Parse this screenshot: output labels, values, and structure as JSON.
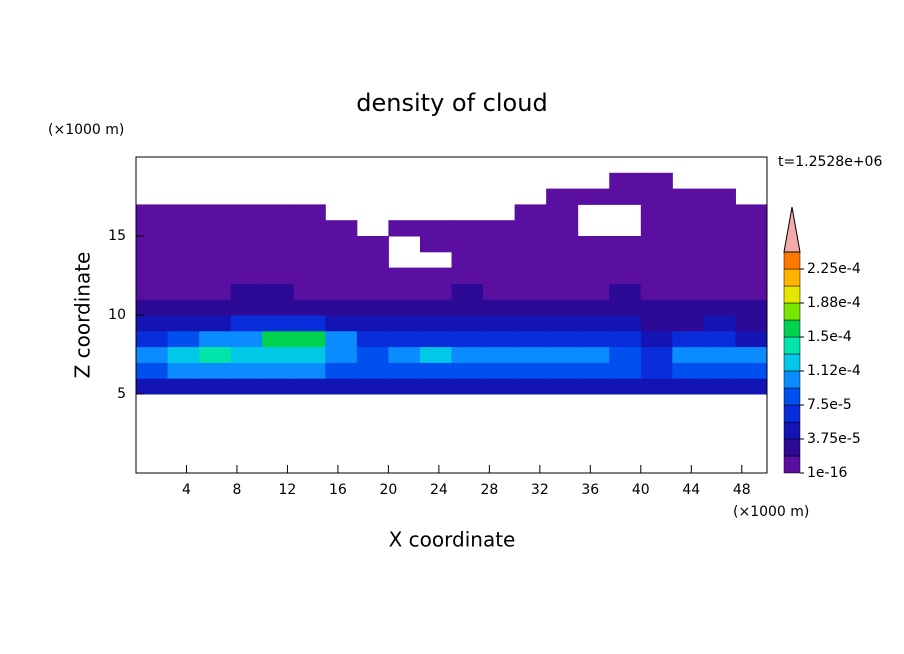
{
  "chart_data": {
    "type": "contour",
    "title": "density of cloud",
    "xlabel": "X coordinate",
    "ylabel": "Z coordinate",
    "x_unit_label": "(×1000 m)",
    "y_unit_label": "(×1000 m)",
    "annotation": "t=1.2528e+06",
    "xlim": [
      0,
      50
    ],
    "ylim": [
      0,
      20
    ],
    "xticks": [
      4,
      8,
      12,
      16,
      20,
      24,
      28,
      32,
      36,
      40,
      44,
      48
    ],
    "yticks": [
      5,
      10,
      15
    ],
    "x_edges": [
      0,
      2.5,
      5,
      7.5,
      10,
      12.5,
      15,
      17.5,
      20,
      22.5,
      25,
      27.5,
      30,
      32.5,
      35,
      37.5,
      40,
      42.5,
      45,
      47.5,
      50
    ],
    "y_edges": [
      5,
      6,
      7,
      8,
      9,
      10,
      11,
      12,
      13,
      14,
      15,
      16,
      17,
      18,
      19
    ],
    "z": [
      [
        4.5e-05,
        4.5e-05,
        4.5e-05,
        4.5e-05,
        4.5e-05,
        4.5e-05,
        4.5e-05,
        4.5e-05,
        4.5e-05,
        4.5e-05,
        4.5e-05,
        4.5e-05,
        4.5e-05,
        4.5e-05,
        4.5e-05,
        4.5e-05,
        4.5e-05,
        4.5e-05,
        4.5e-05,
        4.5e-05
      ],
      [
        8.5e-05,
        0.0001,
        0.0001,
        0.0001,
        0.0001,
        0.0001,
        8.5e-05,
        8.5e-05,
        8.5e-05,
        8.5e-05,
        8.5e-05,
        8.5e-05,
        8.5e-05,
        8.5e-05,
        8.5e-05,
        8.5e-05,
        6.5e-05,
        8.5e-05,
        8.5e-05,
        8.5e-05
      ],
      [
        0.0001,
        0.00012,
        0.00014,
        0.00012,
        0.00012,
        0.00012,
        0.0001,
        8.5e-05,
        0.0001,
        0.00012,
        0.0001,
        0.0001,
        0.0001,
        0.0001,
        0.0001,
        8.5e-05,
        6.5e-05,
        0.0001,
        0.0001,
        0.0001
      ],
      [
        6.5e-05,
        8.5e-05,
        0.0001,
        0.0001,
        0.00016,
        0.00016,
        0.0001,
        6.5e-05,
        6.5e-05,
        6.5e-05,
        6.5e-05,
        6.5e-05,
        6.5e-05,
        6.5e-05,
        6.5e-05,
        6.5e-05,
        4.5e-05,
        6.5e-05,
        6.5e-05,
        4.5e-05
      ],
      [
        4.5e-05,
        4.5e-05,
        4.5e-05,
        6.5e-05,
        6.5e-05,
        6.5e-05,
        4.5e-05,
        4.5e-05,
        4.5e-05,
        4.5e-05,
        4.5e-05,
        4.5e-05,
        4.5e-05,
        4.5e-05,
        4.5e-05,
        4.5e-05,
        2.5e-05,
        2.5e-05,
        4.5e-05,
        2.5e-05
      ],
      [
        2.5e-05,
        2.5e-05,
        2.5e-05,
        2.5e-05,
        2.5e-05,
        2.5e-05,
        2.5e-05,
        2.5e-05,
        2.5e-05,
        2.5e-05,
        2.5e-05,
        2.5e-05,
        2.5e-05,
        2.5e-05,
        2.5e-05,
        2.5e-05,
        2.5e-05,
        2.5e-05,
        2.5e-05,
        2.5e-05
      ],
      [
        5e-06,
        5e-06,
        5e-06,
        2.5e-05,
        2.5e-05,
        5e-06,
        5e-06,
        5e-06,
        5e-06,
        5e-06,
        2.5e-05,
        5e-06,
        5e-06,
        5e-06,
        5e-06,
        2.5e-05,
        5e-06,
        5e-06,
        5e-06,
        5e-06
      ],
      [
        5e-06,
        5e-06,
        5e-06,
        5e-06,
        5e-06,
        5e-06,
        5e-06,
        5e-06,
        5e-06,
        5e-06,
        5e-06,
        5e-06,
        5e-06,
        5e-06,
        5e-06,
        5e-06,
        5e-06,
        5e-06,
        5e-06,
        5e-06
      ],
      [
        5e-06,
        5e-06,
        5e-06,
        5e-06,
        5e-06,
        5e-06,
        5e-06,
        5e-06,
        null,
        null,
        5e-06,
        5e-06,
        5e-06,
        5e-06,
        5e-06,
        5e-06,
        5e-06,
        5e-06,
        5e-06,
        5e-06
      ],
      [
        5e-06,
        5e-06,
        5e-06,
        5e-06,
        5e-06,
        5e-06,
        5e-06,
        5e-06,
        null,
        5e-06,
        5e-06,
        5e-06,
        5e-06,
        5e-06,
        5e-06,
        5e-06,
        5e-06,
        5e-06,
        5e-06,
        5e-06
      ],
      [
        5e-06,
        5e-06,
        5e-06,
        5e-06,
        5e-06,
        5e-06,
        5e-06,
        null,
        5e-06,
        5e-06,
        5e-06,
        5e-06,
        5e-06,
        5e-06,
        null,
        null,
        5e-06,
        5e-06,
        5e-06,
        5e-06
      ],
      [
        5e-06,
        5e-06,
        5e-06,
        5e-06,
        5e-06,
        5e-06,
        null,
        null,
        null,
        null,
        null,
        null,
        5e-06,
        5e-06,
        null,
        null,
        5e-06,
        5e-06,
        5e-06,
        5e-06
      ],
      [
        null,
        null,
        null,
        null,
        null,
        null,
        null,
        null,
        null,
        null,
        null,
        null,
        null,
        5e-06,
        5e-06,
        5e-06,
        5e-06,
        5e-06,
        5e-06,
        null
      ],
      [
        null,
        null,
        null,
        null,
        null,
        null,
        null,
        null,
        null,
        null,
        null,
        null,
        null,
        null,
        null,
        5e-06,
        5e-06,
        null,
        null,
        null
      ]
    ],
    "colorbar": {
      "levels": [
        1e-16,
        1.875e-05,
        3.75e-05,
        5.625e-05,
        7.5e-05,
        9.375e-05,
        0.0001125,
        0.00013125,
        0.00015,
        0.00016875,
        0.0001875,
        0.00020625,
        0.000225,
        0.00024375
      ],
      "colors": [
        "#5a0fa0",
        "#2d0a96",
        "#1414b4",
        "#0a2ddc",
        "#0050f0",
        "#0a8cff",
        "#00c8e6",
        "#00e6aa",
        "#00d250",
        "#78e600",
        "#e6e600",
        "#ffb400",
        "#ff7800",
        "#ff2d1e"
      ],
      "extend_color": "#f5aaaa",
      "ticks": [
        {
          "value": 1e-16,
          "label": "1e-16"
        },
        {
          "value": 3.75e-05,
          "label": "3.75e-5"
        },
        {
          "value": 7.5e-05,
          "label": "7.5e-5"
        },
        {
          "value": 0.0001125,
          "label": "1.12e-4"
        },
        {
          "value": 0.00015,
          "label": "1.5e-4"
        },
        {
          "value": 0.0001875,
          "label": "1.88e-4"
        },
        {
          "value": 0.000225,
          "label": "2.25e-4"
        }
      ]
    }
  }
}
